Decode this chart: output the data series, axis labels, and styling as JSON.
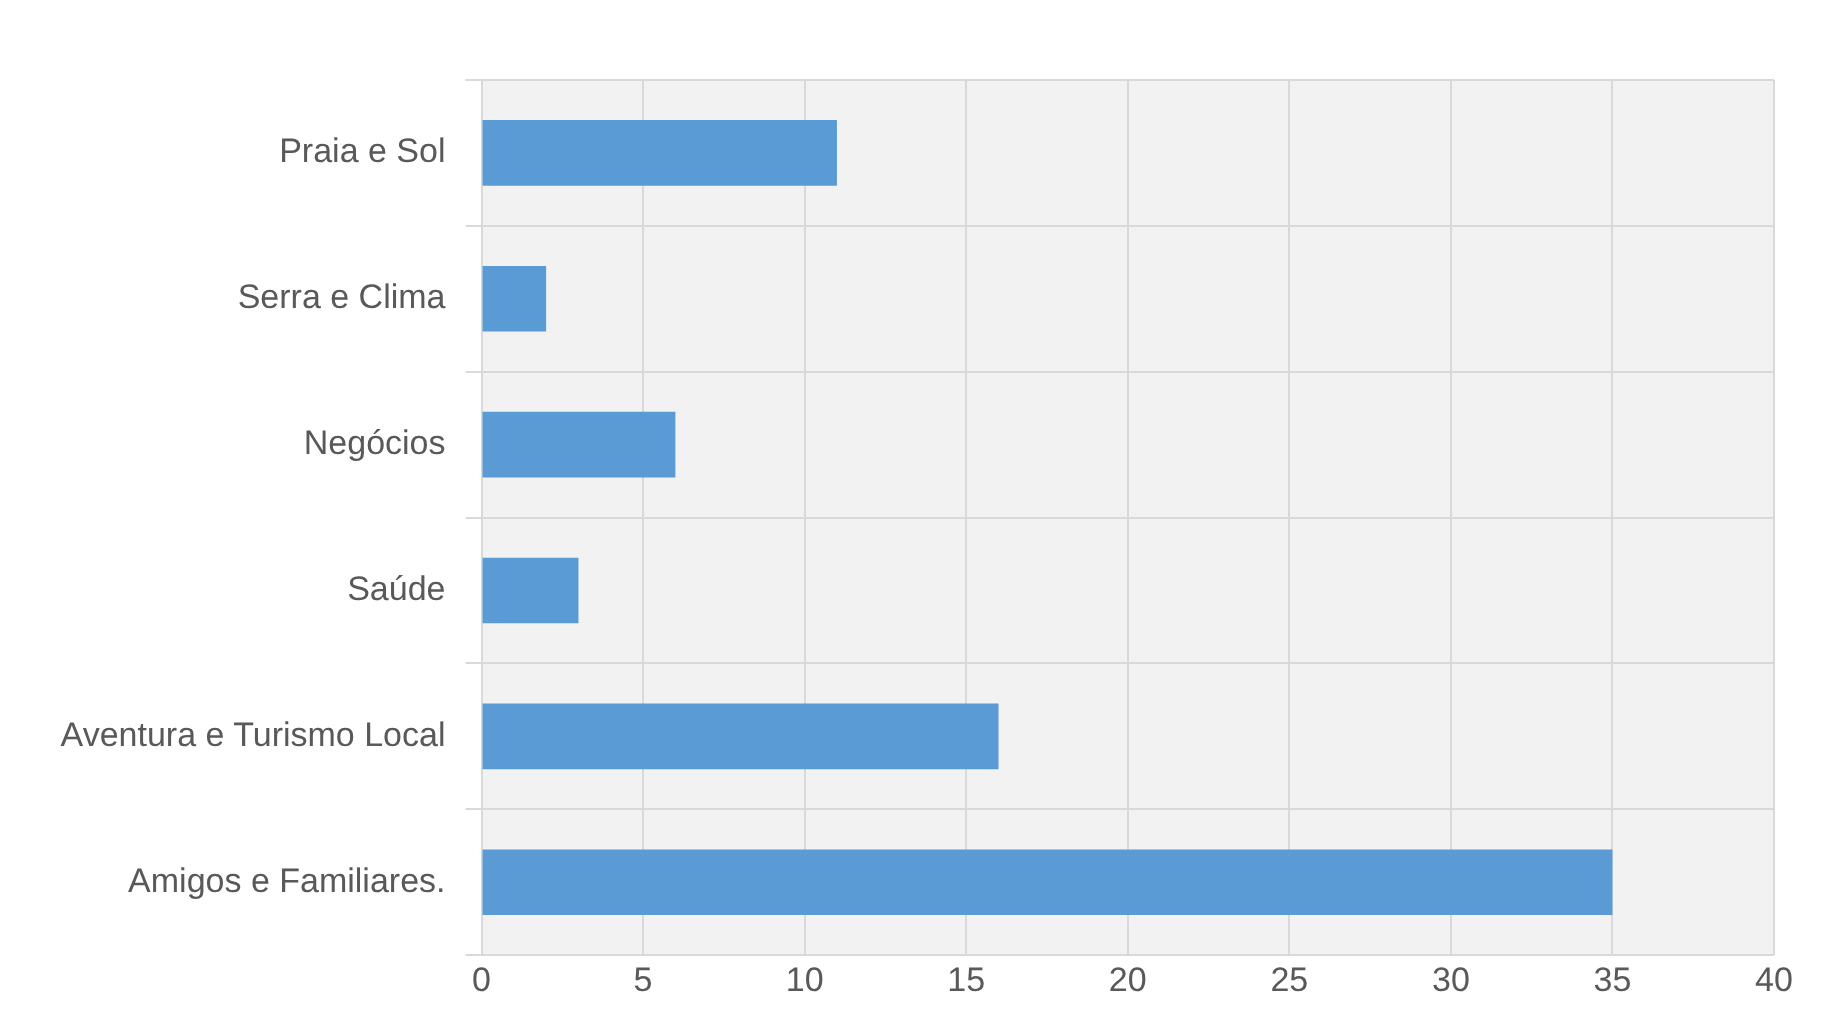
{
  "chart_data": {
    "type": "bar",
    "orientation": "horizontal",
    "categories": [
      "Praia e Sol",
      "Serra e Clima",
      "Negócios",
      "Saúde",
      "Aventura e Turismo Local",
      "Amigos e Familiares."
    ],
    "values": [
      11,
      2,
      6,
      3,
      16,
      35
    ],
    "color": "#5b9bd5",
    "xlim": [
      0,
      40
    ],
    "xticks": [
      0,
      5,
      10,
      15,
      20,
      25,
      30,
      35,
      40
    ],
    "grid": true,
    "legend": false
  }
}
